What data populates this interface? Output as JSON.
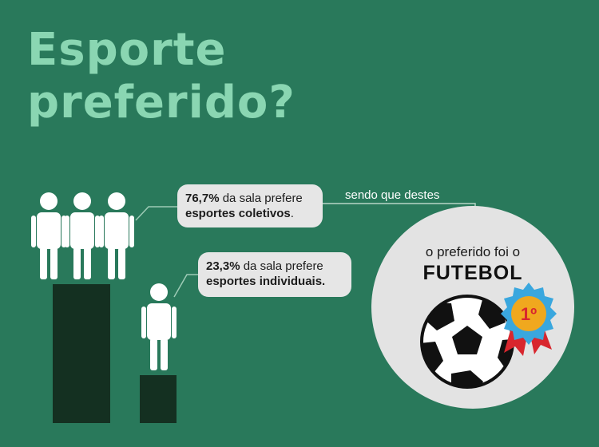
{
  "title": {
    "line1": "Esporte",
    "line2": "preferido?"
  },
  "stats": {
    "collective": {
      "percent": "76,7%",
      "text_a": " da sala prefere",
      "text_b": "esportes coletivos",
      "text_c": "."
    },
    "individual": {
      "percent": "23,3%",
      "text_a": " da sala prefere",
      "text_b": "esportes individuais."
    }
  },
  "connector_text": "sendo que destes",
  "favorite": {
    "intro": "o preferido foi o",
    "sport": "FUTEBOL",
    "medal": "1º"
  },
  "icons": [
    "person-icon",
    "soccer-ball-icon",
    "medal-ribbon-icon"
  ],
  "colors": {
    "background": "#29795b",
    "title": "#8ad6b2",
    "bars": "#143021",
    "bubble": "#e6e6e6",
    "medal_gold": "#f0a81e",
    "medal_blue": "#3aa7de",
    "ribbon_red": "#d8262e"
  }
}
